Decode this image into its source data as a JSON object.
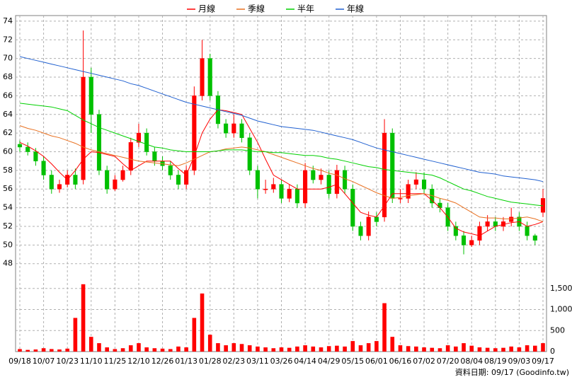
{
  "chart_data": {
    "type": "candlestick",
    "categories": [
      "09/18",
      null,
      null,
      "10/07",
      null,
      null,
      "10/23",
      null,
      null,
      "11/10",
      null,
      null,
      "11/25",
      null,
      null,
      "12/10",
      null,
      null,
      "12/26",
      null,
      null,
      "01/13",
      null,
      null,
      "01/28",
      null,
      null,
      "02/23",
      null,
      null,
      "03/11",
      null,
      null,
      "03/26",
      null,
      null,
      "04/14",
      null,
      null,
      "04/29",
      null,
      null,
      "05/15",
      null,
      null,
      "06/01",
      null,
      null,
      "06/16",
      null,
      null,
      "07/02",
      null,
      null,
      "07/20",
      null,
      null,
      "08/04",
      null,
      null,
      "08/19",
      null,
      null,
      "09/03",
      null,
      null,
      "09/17"
    ],
    "open": [
      60.8,
      60.5,
      60,
      59,
      57.5,
      56,
      56.5,
      57.5,
      57,
      68,
      64,
      58,
      56,
      57,
      58,
      61,
      62,
      60,
      59,
      58.5,
      57.5,
      56.5,
      58,
      66,
      70,
      66,
      63,
      62,
      63,
      61.5,
      58,
      56,
      56,
      56.5,
      55,
      56,
      54.5,
      58,
      57,
      57.5,
      55.5,
      58,
      56,
      52,
      51,
      53,
      53,
      62,
      55,
      55,
      56.5,
      57,
      56,
      54.5,
      54,
      52,
      51,
      50,
      50.5,
      52,
      52.5,
      52,
      52.5,
      53,
      52,
      51,
      53.5
    ],
    "high": [
      61.2,
      61,
      60.4,
      59.5,
      58,
      57,
      58,
      58.2,
      73,
      69,
      64.5,
      58.5,
      57.5,
      58.5,
      61.5,
      63,
      62.5,
      60.5,
      59.5,
      59,
      58,
      58.5,
      67,
      72,
      70.5,
      66.5,
      63.5,
      64,
      63.5,
      62,
      58.5,
      57,
      57.2,
      57,
      56.5,
      56.5,
      58.8,
      58.5,
      58.2,
      58,
      58.6,
      58.5,
      56.5,
      52.5,
      53.6,
      53.5,
      63.5,
      62.5,
      56,
      57,
      57.8,
      57.8,
      56.5,
      55,
      54.5,
      52.5,
      51.5,
      51,
      52.5,
      53.2,
      53,
      53,
      54,
      53.5,
      52.5,
      51.2,
      56
    ],
    "low": [
      60,
      59.6,
      58.5,
      57,
      55.5,
      55.6,
      56.2,
      56,
      56.5,
      62,
      57.5,
      55.5,
      55.8,
      56.8,
      57.5,
      60.5,
      59.6,
      58.5,
      58,
      57,
      56,
      56,
      57.5,
      65.5,
      65.5,
      62.5,
      61.5,
      61.5,
      61,
      57.5,
      55,
      55.5,
      55.6,
      54.5,
      54.6,
      54,
      54,
      56.6,
      56.5,
      55,
      55,
      55.5,
      51.5,
      50.5,
      50.5,
      52,
      52.5,
      54.5,
      54.5,
      54.5,
      56,
      55.5,
      54,
      53.5,
      51.5,
      50.5,
      49,
      49.8,
      50,
      51.5,
      51.5,
      51.5,
      52,
      51.5,
      50.5,
      50,
      53
    ],
    "close": [
      60.5,
      60,
      59,
      57.5,
      56,
      56.5,
      57.5,
      56.5,
      68,
      64,
      58,
      56,
      57,
      58,
      61,
      62,
      60,
      59,
      58.5,
      57.5,
      56.5,
      58,
      66,
      70,
      66,
      63,
      62,
      63,
      61.5,
      58,
      56,
      56,
      56.5,
      55,
      56,
      54.5,
      58,
      57,
      57.5,
      55.5,
      58,
      56,
      52,
      51,
      53,
      52.5,
      62,
      55,
      55,
      56.5,
      57,
      56,
      54.5,
      54,
      52,
      51,
      50,
      50.5,
      52,
      52.5,
      52,
      52.5,
      53,
      52,
      51,
      50.5,
      55
    ],
    "volume": [
      60,
      40,
      50,
      80,
      60,
      50,
      70,
      800,
      1600,
      350,
      200,
      100,
      60,
      80,
      150,
      200,
      100,
      80,
      70,
      60,
      120,
      100,
      800,
      1380,
      400,
      200,
      150,
      200,
      180,
      150,
      120,
      100,
      80,
      100,
      90,
      120,
      150,
      120,
      100,
      130,
      140,
      120,
      250,
      150,
      200,
      250,
      1150,
      350,
      150,
      130,
      120,
      100,
      90,
      80,
      150,
      120,
      200,
      140,
      100,
      90,
      80,
      90,
      120,
      100,
      150,
      140,
      200
    ],
    "up_color": "#ff0000",
    "down_color": "#00c000",
    "volume_color": "#ff0000",
    "series": [
      {
        "name": "月線",
        "color": "#ff0000",
        "values": [
          61.0,
          60.6,
          60.1,
          59.5,
          58.7,
          57.8,
          57.0,
          58.0,
          59.2,
          60.0,
          59.9,
          59.7,
          59.5,
          58.7,
          58.0,
          58.5,
          59.0,
          59.0,
          59.0,
          59.0,
          58.2,
          57.5,
          59.5,
          62.0,
          63.5,
          64.5,
          64.4,
          64.2,
          64.0,
          62.5,
          61.0,
          59.2,
          57.5,
          57.0,
          56.5,
          56.0,
          56.0,
          56.0,
          56.0,
          56.2,
          56.5,
          55.5,
          54.5,
          53.5,
          53.2,
          53.0,
          54.2,
          55.5,
          55.5,
          55.5,
          55.5,
          55.5,
          54.8,
          54.0,
          53.0,
          51.8,
          51.4,
          51.2,
          51.0,
          51.5,
          52.0,
          52.2,
          52.4,
          52.5,
          52.0,
          52.2,
          52.5
        ]
      },
      {
        "name": "季線",
        "color": "#e87020",
        "values": [
          62.8,
          62.5,
          62.3,
          62.0,
          61.7,
          61.5,
          61.2,
          60.9,
          60.5,
          60.2,
          60.0,
          59.8,
          59.6,
          59.4,
          59.2,
          59.0,
          58.9,
          58.8,
          58.7,
          58.6,
          58.5,
          58.8,
          59.2,
          59.6,
          60.0,
          60.1,
          60.3,
          60.4,
          60.5,
          60.4,
          60.2,
          60.0,
          59.7,
          59.4,
          59.1,
          58.8,
          58.5,
          58.2,
          58.0,
          57.7,
          57.5,
          57.1,
          56.8,
          56.4,
          56.0,
          55.6,
          55.3,
          55.0,
          55.1,
          55.3,
          55.4,
          55.5,
          55.3,
          55.0,
          54.8,
          54.5,
          54.0,
          53.5,
          53.0,
          52.9,
          52.9,
          52.8,
          52.8,
          52.9,
          53.0,
          52.8,
          52.5
        ]
      },
      {
        "name": "半年",
        "color": "#00d000",
        "values": [
          65.2,
          65.1,
          65.0,
          64.9,
          64.8,
          64.6,
          64.4,
          63.9,
          63.4,
          63.0,
          62.6,
          62.3,
          62.0,
          61.7,
          61.4,
          61.1,
          60.8,
          60.5,
          60.4,
          60.2,
          60.1,
          60.0,
          60.0,
          60.0,
          60.0,
          60.1,
          60.2,
          60.2,
          60.2,
          60.1,
          60.0,
          60.0,
          59.9,
          59.9,
          59.8,
          59.7,
          59.6,
          59.6,
          59.5,
          59.3,
          59.2,
          59.0,
          58.8,
          58.6,
          58.4,
          58.3,
          58.1,
          58.0,
          57.9,
          57.8,
          57.7,
          57.6,
          57.5,
          57.2,
          56.8,
          56.4,
          56.0,
          55.8,
          55.5,
          55.2,
          55.0,
          54.8,
          54.6,
          54.5,
          54.4,
          54.3,
          54.2
        ]
      },
      {
        "name": "年線",
        "color": "#2060d0",
        "values": [
          70.2,
          70.0,
          69.8,
          69.6,
          69.4,
          69.2,
          69.0,
          68.8,
          68.6,
          68.4,
          68.2,
          68.0,
          67.8,
          67.6,
          67.3,
          67.1,
          66.8,
          66.5,
          66.2,
          65.9,
          65.6,
          65.3,
          65.1,
          64.9,
          64.7,
          64.5,
          64.3,
          64.1,
          63.9,
          63.6,
          63.3,
          63.1,
          62.9,
          62.7,
          62.6,
          62.5,
          62.4,
          62.3,
          62.1,
          61.9,
          61.7,
          61.5,
          61.3,
          61.0,
          60.7,
          60.4,
          60.2,
          60.0,
          59.8,
          59.6,
          59.4,
          59.2,
          59.0,
          58.8,
          58.6,
          58.4,
          58.2,
          58.0,
          57.8,
          57.7,
          57.6,
          57.4,
          57.3,
          57.2,
          57.1,
          57.0,
          56.8
        ]
      }
    ],
    "ylim": [
      47.6,
      74.6
    ],
    "yticks": [
      48,
      50,
      52,
      54,
      56,
      58,
      60,
      62,
      64,
      66,
      68,
      70,
      72,
      74
    ],
    "y2lim": [
      0,
      2000
    ],
    "y2ticks": [
      0,
      500,
      {
        "value": 1000,
        "label": "1,000"
      },
      {
        "value": 1500,
        "label": "1,500"
      }
    ],
    "grid": true,
    "legend": "top",
    "source_note": "資料日期: 09/17 (Goodinfo.tw)"
  }
}
